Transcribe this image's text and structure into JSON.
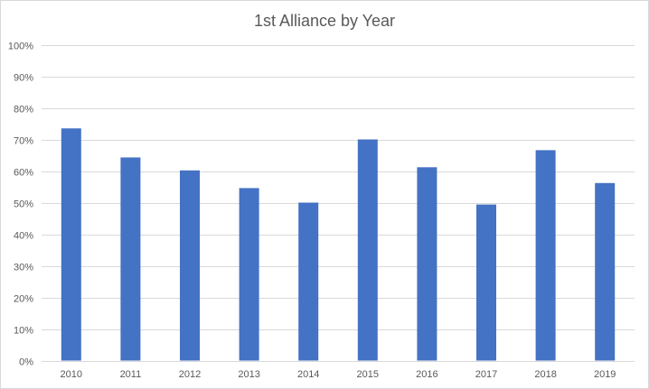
{
  "chart_data": {
    "type": "bar",
    "title": "1st Alliance by Year",
    "xlabel": "",
    "ylabel": "",
    "categories": [
      "2010",
      "2011",
      "2012",
      "2013",
      "2014",
      "2015",
      "2016",
      "2017",
      "2018",
      "2019"
    ],
    "values": [
      73.5,
      64.3,
      60.2,
      54.6,
      50.0,
      70.0,
      61.2,
      49.4,
      66.6,
      56.2
    ],
    "y_unit": "%",
    "ylim": [
      0,
      100
    ],
    "ytick_labels": [
      "0%",
      "10%",
      "20%",
      "30%",
      "40%",
      "50%",
      "60%",
      "70%",
      "80%",
      "90%",
      "100%"
    ],
    "grid": true,
    "legend": "none",
    "bar_color": "#4472c4"
  }
}
